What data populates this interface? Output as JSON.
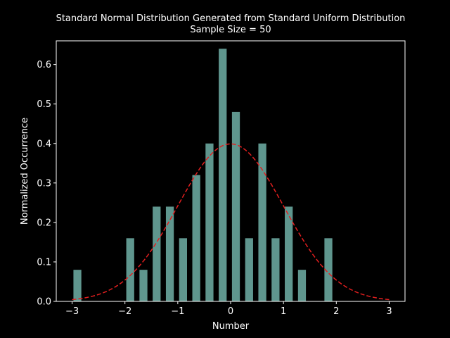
{
  "chart_data": {
    "type": "bar",
    "title": "Standard Normal Distribution Generated from Standard Uniform Distribution",
    "subtitle": "Sample Size = 50",
    "xlabel": "Number",
    "ylabel": "Normalized Occurrence",
    "xlim": [
      -3.3,
      3.3
    ],
    "ylim": [
      0,
      0.66
    ],
    "xticks": [
      -3,
      -2,
      -1,
      0,
      1,
      2,
      3
    ],
    "xtick_labels": [
      "−3",
      "−2",
      "−1",
      "0",
      "1",
      "2",
      "3"
    ],
    "yticks": [
      0.0,
      0.1,
      0.2,
      0.3,
      0.4,
      0.5,
      0.6
    ],
    "ytick_labels": [
      "0.0",
      "0.1",
      "0.2",
      "0.3",
      "0.4",
      "0.5",
      "0.6"
    ],
    "bar_width": 0.2,
    "bars": [
      {
        "x": -2.9,
        "y": 0.08
      },
      {
        "x": -1.9,
        "y": 0.16
      },
      {
        "x": -1.65,
        "y": 0.08
      },
      {
        "x": -1.4,
        "y": 0.24
      },
      {
        "x": -1.15,
        "y": 0.24
      },
      {
        "x": -0.9,
        "y": 0.16
      },
      {
        "x": -0.65,
        "y": 0.32
      },
      {
        "x": -0.4,
        "y": 0.4
      },
      {
        "x": -0.15,
        "y": 0.64
      },
      {
        "x": 0.1,
        "y": 0.48
      },
      {
        "x": 0.35,
        "y": 0.16
      },
      {
        "x": 0.6,
        "y": 0.4
      },
      {
        "x": 0.85,
        "y": 0.16
      },
      {
        "x": 1.1,
        "y": 0.24
      },
      {
        "x": 1.35,
        "y": 0.08
      },
      {
        "x": 1.85,
        "y": 0.16
      }
    ],
    "curve": {
      "type": "normal-pdf",
      "x_range": [
        -3,
        3
      ],
      "style": "dashed"
    },
    "grid": false,
    "colors": {
      "background": "#000000",
      "bars": "#5f968e",
      "curve": "#e21f1f",
      "axes": "#ffffff",
      "text": "#ffffff"
    }
  }
}
